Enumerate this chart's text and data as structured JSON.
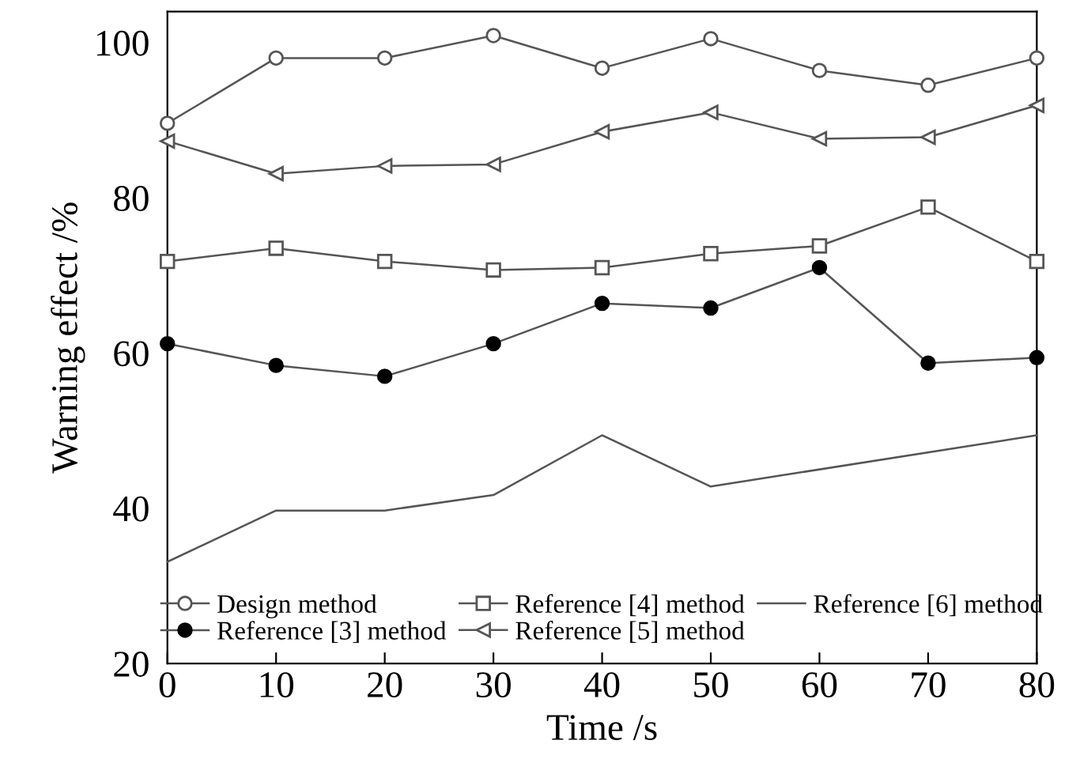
{
  "chart_data": {
    "type": "line",
    "xlabel": "Time /s",
    "ylabel": "Warning effect /%",
    "x": [
      0,
      10,
      20,
      30,
      40,
      50,
      60,
      70,
      80
    ],
    "series": [
      {
        "name": "Design method",
        "color": "#555555",
        "marker": "circle",
        "values": [
          89.6,
          98,
          98,
          100.9,
          96.7,
          100.5,
          96.4,
          94.5,
          98
        ]
      },
      {
        "name": "Reference [3] method",
        "color": "#555555",
        "marker": "circle_filled",
        "values": [
          61.2,
          58.4,
          57.0,
          61.2,
          66.4,
          65.8,
          71.0,
          58.7,
          59.4
        ]
      },
      {
        "name": "Reference [4] method",
        "color": "#555555",
        "marker": "square",
        "values": [
          71.8,
          73.5,
          71.8,
          70.7,
          71.0,
          72.8,
          73.8,
          78.8,
          71.8
        ]
      },
      {
        "name": "Reference [5] method",
        "color": "#555555",
        "marker": "triangle",
        "values": [
          87.3,
          83.1,
          84.1,
          84.3,
          88.5,
          91.0,
          87.6,
          87.8,
          91.9
        ]
      },
      {
        "name": "Reference [6] method",
        "color": "#555555",
        "marker": "none",
        "x": [
          0,
          10,
          20,
          30,
          40,
          50,
          80
        ],
        "values": [
          33.1,
          39.7,
          39.7,
          41.7,
          49.4,
          42.8,
          49.4
        ]
      }
    ],
    "xlim": [
      0,
      80
    ],
    "xticks": [
      0,
      10,
      20,
      30,
      40,
      50,
      60,
      70,
      80
    ],
    "ylim": [
      20,
      104
    ],
    "yticks": [
      20,
      40,
      60,
      80,
      100
    ],
    "grid": false,
    "legend": "bottom",
    "line_style": "solid"
  }
}
